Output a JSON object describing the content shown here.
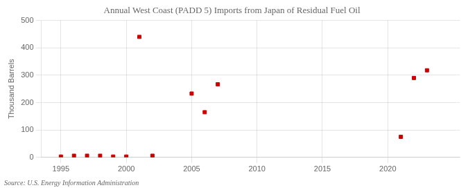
{
  "chart_data": {
    "type": "scatter",
    "title": "Annual West Coast (PADD 5) Imports from Japan of Residual Fuel Oil",
    "ylabel": "Thousand Barrels",
    "annotations": [
      "Source: U.S. Energy Information Administration"
    ],
    "x": [
      1995,
      1996,
      1997,
      1998,
      1999,
      2000,
      2001,
      2002,
      2005,
      2006,
      2007,
      2021,
      2022,
      2023
    ],
    "values": [
      3,
      6,
      6,
      6,
      3,
      3,
      440,
      6,
      233,
      165,
      267,
      75,
      290,
      318
    ],
    "color": "#cc0000",
    "marker": "square",
    "xlim": [
      1993.5,
      2025.5
    ],
    "xticks": [
      1995,
      2000,
      2005,
      2010,
      2015,
      2020
    ],
    "ylim": [
      0,
      500
    ],
    "yticks": [
      0,
      100,
      200,
      300,
      400,
      500
    ],
    "grid": true
  }
}
